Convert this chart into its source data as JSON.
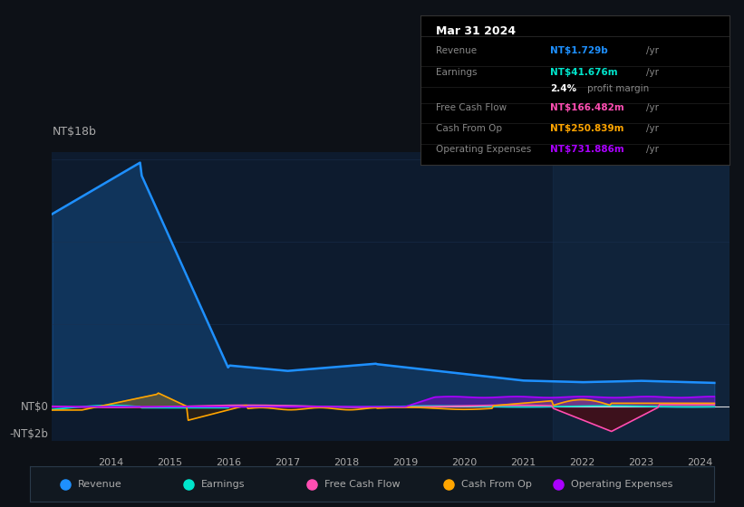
{
  "bg_color": "#0d1117",
  "plot_bg_color": "#0d1b2e",
  "text_color": "#aaaaaa",
  "grid_color": "#1a3050",
  "ylabel_top": "NT$18b",
  "ytick_labels": [
    "NT$0",
    "-NT$2b"
  ],
  "xtick_labels": [
    "2014",
    "2015",
    "2016",
    "2017",
    "2018",
    "2019",
    "2020",
    "2021",
    "2022",
    "2023",
    "2024"
  ],
  "revenue_color": "#1e90ff",
  "earnings_color": "#00e5cc",
  "fcf_color": "#ff4eb3",
  "cashfromop_color": "#ffa500",
  "opex_color": "#aa00ff",
  "legend_entries": [
    "Revenue",
    "Earnings",
    "Free Cash Flow",
    "Cash From Op",
    "Operating Expenses"
  ],
  "tooltip_date": "Mar 31 2024",
  "tooltip_rows": [
    {
      "label": "Revenue",
      "value": "NT$1.729b",
      "unit": "/yr",
      "bold_color": "#1e90ff"
    },
    {
      "label": "Earnings",
      "value": "NT$41.676m",
      "unit": "/yr",
      "bold_color": "#00e5cc"
    },
    {
      "label": "",
      "value": "2.4%",
      "unit": "profit margin",
      "bold_color": "#ffffff"
    },
    {
      "label": "Free Cash Flow",
      "value": "NT$166.482m",
      "unit": "/yr",
      "bold_color": "#ff4eb3"
    },
    {
      "label": "Cash From Op",
      "value": "NT$250.839m",
      "unit": "/yr",
      "bold_color": "#ffa500"
    },
    {
      "label": "Operating Expenses",
      "value": "NT$731.886m",
      "unit": "/yr",
      "bold_color": "#aa00ff"
    }
  ],
  "xmin": 2013.0,
  "xmax": 2024.5,
  "ymin": -2500000000.0,
  "ymax": 18500000000.0
}
